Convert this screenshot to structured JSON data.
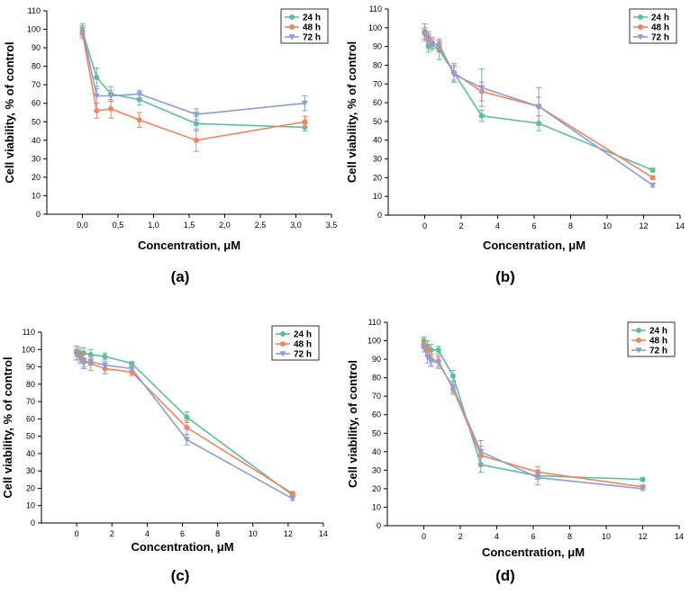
{
  "colors": {
    "24 h": "#5cbf9c",
    "48 h": "#f0855f",
    "72 h": "#8c9ed2",
    "axis": "#000000"
  },
  "chart_data": [
    {
      "type": "line",
      "panel_label": "(a)",
      "xlabel": "Concentration, μM",
      "ylabel": "Cell viability, % of control",
      "xlim": [
        -0.5,
        3.5
      ],
      "ylim": [
        0,
        110
      ],
      "xticks": [
        "0,0",
        "0,5",
        "1,0",
        "1,5",
        "2,0",
        "2,5",
        "3,0",
        "3,5"
      ],
      "yticks": [
        "0",
        "10",
        "20",
        "30",
        "40",
        "50",
        "60",
        "70",
        "80",
        "90",
        "100",
        "110"
      ],
      "legend": "top-right",
      "series": [
        {
          "name": "24 h",
          "x": [
            0,
            0.2,
            0.4,
            0.8,
            1.6,
            3.125
          ],
          "y": [
            99,
            74,
            65,
            62,
            49,
            47
          ],
          "err": [
            3,
            5,
            4,
            3,
            4,
            2
          ]
        },
        {
          "name": "48 h",
          "x": [
            0,
            0.2,
            0.4,
            0.8,
            1.6,
            3.125
          ],
          "y": [
            98,
            56,
            57,
            51,
            40,
            50
          ],
          "err": [
            3,
            4,
            5,
            4,
            6,
            3
          ]
        },
        {
          "name": "72 h",
          "x": [
            0,
            0.2,
            0.4,
            0.8,
            1.6,
            3.125
          ],
          "y": [
            100,
            64,
            64,
            65,
            54,
            60
          ],
          "err": [
            3,
            4,
            3,
            2,
            3,
            4
          ]
        }
      ]
    },
    {
      "type": "line",
      "panel_label": "(b)",
      "xlabel": "Concentration, μM",
      "ylabel": "Cell viability, % of control",
      "xlim": [
        -2,
        14
      ],
      "ylim": [
        0,
        110
      ],
      "xticks": [
        "0",
        "2",
        "4",
        "6",
        "8",
        "10",
        "12",
        "14"
      ],
      "yticks": [
        "0",
        "10",
        "20",
        "30",
        "40",
        "50",
        "60",
        "70",
        "80",
        "90",
        "100",
        "110"
      ],
      "legend": "top-right",
      "series": [
        {
          "name": "24 h",
          "x": [
            0,
            0.2,
            0.4,
            0.8,
            1.6,
            3.125,
            6.25,
            12.5
          ],
          "y": [
            98,
            90,
            91,
            88,
            76,
            53,
            49,
            24
          ],
          "err": [
            4,
            3,
            3,
            5,
            4,
            3,
            4,
            1
          ]
        },
        {
          "name": "48 h",
          "x": [
            0,
            0.2,
            0.4,
            0.8,
            1.6,
            3.125,
            6.25,
            12.5
          ],
          "y": [
            97,
            94,
            92,
            90,
            76,
            66,
            58,
            20
          ],
          "err": [
            3,
            3,
            3,
            3,
            5,
            5,
            5,
            1
          ]
        },
        {
          "name": "72 h",
          "x": [
            0,
            0.2,
            0.4,
            0.8,
            1.6,
            3.125,
            6.25,
            12.5
          ],
          "y": [
            96,
            95,
            91,
            91,
            75,
            68,
            58,
            16
          ],
          "err": [
            3,
            3,
            2,
            3,
            4,
            10,
            10,
            1
          ]
        }
      ]
    },
    {
      "type": "line",
      "panel_label": "(c)",
      "xlabel": "Concentration, μM",
      "ylabel": "Cell viability, % of control",
      "xlim": [
        -2,
        14
      ],
      "ylim": [
        0,
        110
      ],
      "xticks": [
        "0",
        "2",
        "4",
        "6",
        "8",
        "10",
        "12",
        "14"
      ],
      "yticks": [
        "0",
        "10",
        "20",
        "30",
        "40",
        "50",
        "60",
        "70",
        "80",
        "90",
        "100",
        "110"
      ],
      "legend": "top-right",
      "series": [
        {
          "name": "24 h",
          "x": [
            0,
            0.2,
            0.4,
            0.8,
            1.6,
            3.125,
            6.25,
            12.25
          ],
          "y": [
            99,
            98,
            98,
            97,
            96,
            92,
            61,
            16
          ],
          "err": [
            3,
            3,
            3,
            3,
            2,
            1,
            3,
            1
          ]
        },
        {
          "name": "48 h",
          "x": [
            0,
            0.2,
            0.4,
            0.8,
            1.6,
            3.125,
            6.25,
            12.25
          ],
          "y": [
            98,
            96,
            94,
            92,
            89,
            87,
            55,
            17
          ],
          "err": [
            4,
            3,
            4,
            4,
            3,
            2,
            4,
            1
          ]
        },
        {
          "name": "72 h",
          "x": [
            0,
            0.2,
            0.4,
            0.8,
            1.6,
            3.125,
            6.25,
            12.25
          ],
          "y": [
            97,
            95,
            92,
            93,
            91,
            89,
            48,
            14
          ],
          "err": [
            3,
            3,
            3,
            2,
            2,
            1,
            3,
            1
          ]
        }
      ]
    },
    {
      "type": "line",
      "panel_label": "(d)",
      "xlabel": "Concentration, μM",
      "ylabel": "Cell viability, of control",
      "xlim": [
        -2,
        14
      ],
      "ylim": [
        0,
        110
      ],
      "xticks": [
        "0",
        "2",
        "4",
        "6",
        "8",
        "10",
        "12",
        "14"
      ],
      "yticks": [
        "0",
        "10",
        "20",
        "30",
        "40",
        "50",
        "60",
        "70",
        "80",
        "90",
        "100",
        "110"
      ],
      "legend": "top-right",
      "series": [
        {
          "name": "24 h",
          "x": [
            0,
            0.2,
            0.4,
            0.8,
            1.6,
            3.125,
            6.25,
            12
          ],
          "y": [
            100,
            97,
            95,
            95,
            81,
            33,
            27,
            25
          ],
          "err": [
            2,
            3,
            3,
            2,
            3,
            4,
            2,
            1
          ]
        },
        {
          "name": "48 h",
          "x": [
            0,
            0.2,
            0.4,
            0.8,
            1.6,
            3.125,
            6.25,
            12
          ],
          "y": [
            98,
            95,
            90,
            89,
            74,
            38,
            29,
            21
          ],
          "err": [
            2,
            3,
            3,
            3,
            3,
            5,
            3,
            1
          ]
        },
        {
          "name": "72 h",
          "x": [
            0,
            0.2,
            0.4,
            0.8,
            1.6,
            3.125,
            6.25,
            12
          ],
          "y": [
            96,
            91,
            89,
            88,
            75,
            40,
            26,
            20
          ],
          "err": [
            2,
            3,
            3,
            3,
            3,
            6,
            4,
            1
          ]
        }
      ]
    }
  ]
}
